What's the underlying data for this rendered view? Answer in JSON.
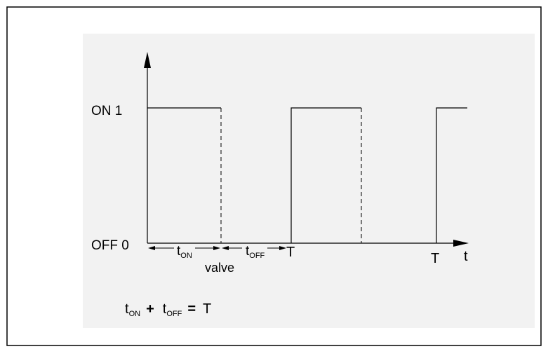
{
  "diagram": {
    "y_labels": {
      "on": "ON 1",
      "off": "OFF 0"
    },
    "x_axis_label": "t",
    "interval_labels": {
      "t_on_main": "t",
      "t_on_sub": "ON",
      "t_off_main": "t",
      "t_off_sub": "OFF",
      "period_1": "T",
      "period_2": "T",
      "valve": "valve"
    },
    "equation": {
      "t1": "t",
      "t1_sub": "ON",
      "plus": "+",
      "t2": "t",
      "t2_sub": "OFF",
      "equals": "=",
      "result": "T"
    },
    "colors": {
      "frame": "#000000",
      "panel": "#f2f2f2",
      "line": "#000000"
    }
  }
}
